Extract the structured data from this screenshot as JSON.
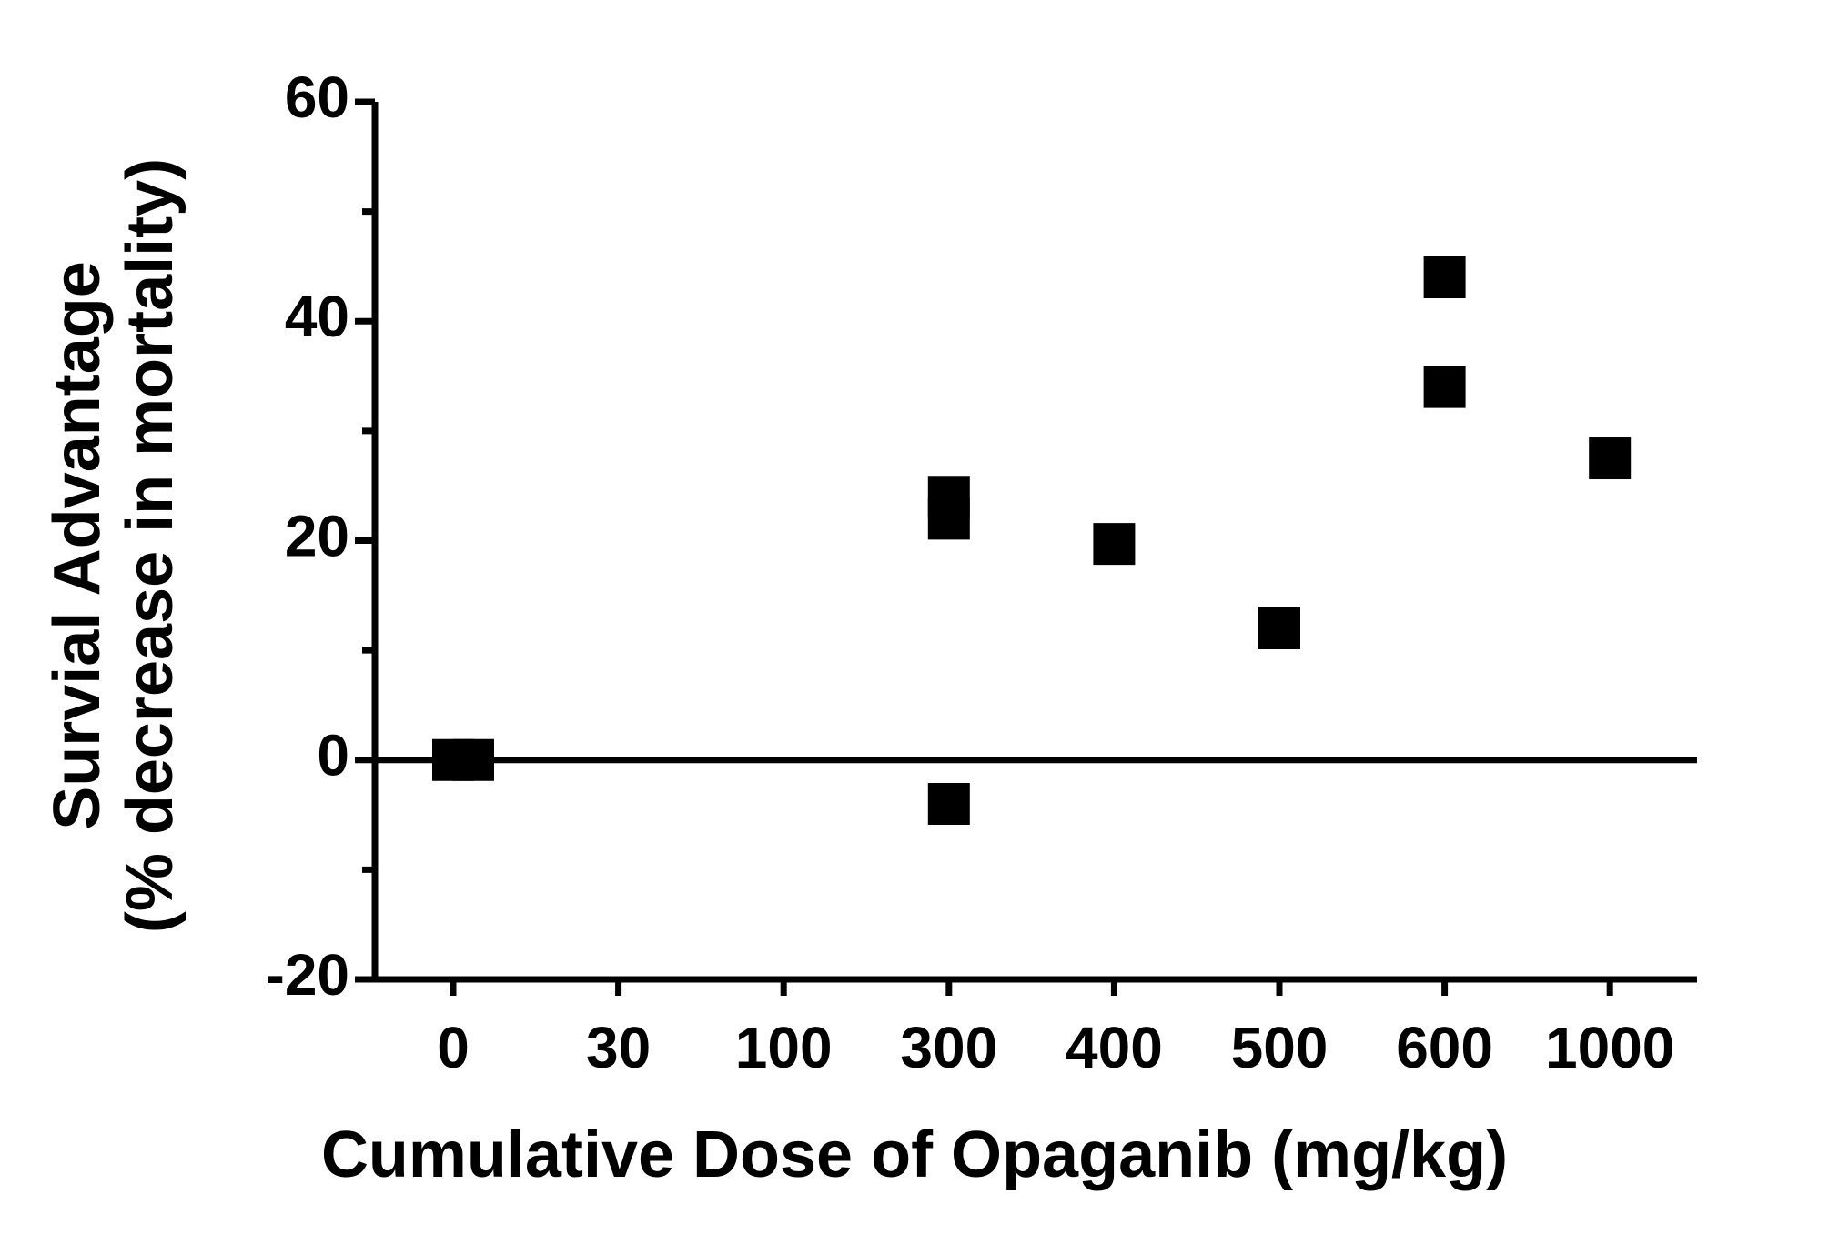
{
  "chart_data": {
    "type": "scatter",
    "x_label": "Cumulative Dose of Opaganib (mg/kg)",
    "y_label": [
      "Survial Advantage",
      "(% decrease in mortality)"
    ],
    "categories": [
      "0",
      "30",
      "100",
      "300",
      "400",
      "500",
      "600",
      "1000"
    ],
    "x": [
      "0",
      "0",
      "300",
      "300",
      "300",
      "400",
      "500",
      "600",
      "600",
      "1000"
    ],
    "values": [
      0,
      0,
      24,
      22,
      -4,
      19.7,
      12,
      44,
      34,
      27.5
    ],
    "color": "#000000",
    "ylim": [
      -20,
      60
    ],
    "yticks": [
      -20,
      0,
      20,
      40,
      60
    ],
    "yminorticks": [
      -10,
      10,
      30,
      50
    ]
  }
}
